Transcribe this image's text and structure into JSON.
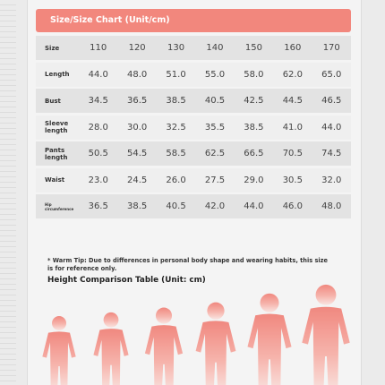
{
  "header": {
    "title": "Size/Size Chart (Unit/cm)"
  },
  "table": {
    "rows": [
      [
        "Size",
        "110",
        "120",
        "130",
        "140",
        "150",
        "160",
        "170"
      ],
      [
        "Length",
        "44.0",
        "48.0",
        "51.0",
        "55.0",
        "58.0",
        "62.0",
        "65.0"
      ],
      [
        "Bust",
        "34.5",
        "36.5",
        "38.5",
        "40.5",
        "42.5",
        "44.5",
        "46.5"
      ],
      [
        "Sleeve length",
        "28.0",
        "30.0",
        "32.5",
        "35.5",
        "38.5",
        "41.0",
        "44.0"
      ],
      [
        "Pants length",
        "50.5",
        "54.5",
        "58.5",
        "62.5",
        "66.5",
        "70.5",
        "74.5"
      ],
      [
        "Waist",
        "23.0",
        "24.5",
        "26.0",
        "27.5",
        "29.0",
        "30.5",
        "32.0"
      ],
      [
        "Hip circumference",
        "36.5",
        "38.5",
        "40.5",
        "42.0",
        "44.0",
        "46.0",
        "48.0"
      ]
    ]
  },
  "note": "* Warm Tip: Due to differences in personal body shape and wearing habits, this size is for reference only.",
  "height_title": "Height Comparison Table (Unit: cm)"
}
